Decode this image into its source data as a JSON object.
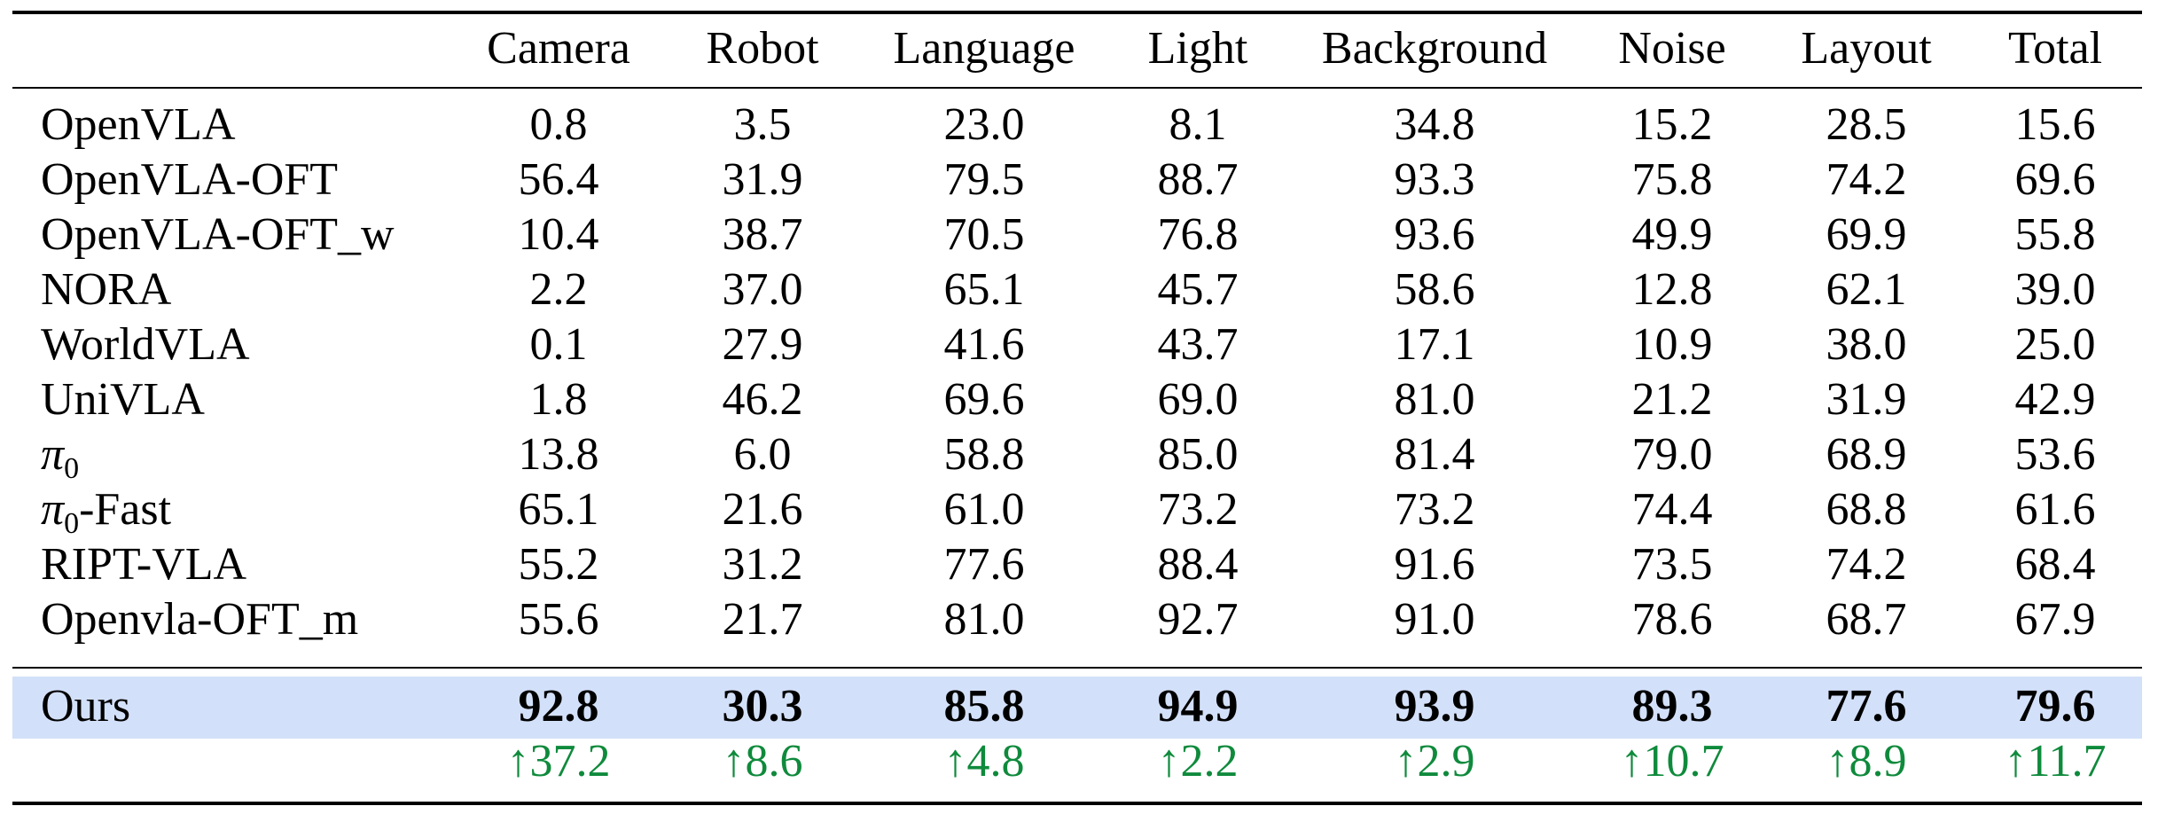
{
  "table": {
    "columns": [
      "Camera",
      "Robot",
      "Language",
      "Light",
      "Background",
      "Noise",
      "Layout",
      "Total"
    ],
    "rows": [
      {
        "method": "OpenVLA",
        "values": [
          "0.8",
          "3.5",
          "23.0",
          "8.1",
          "34.8",
          "15.2",
          "28.5",
          "15.6"
        ]
      },
      {
        "method": "OpenVLA-OFT",
        "values": [
          "56.4",
          "31.9",
          "79.5",
          "88.7",
          "93.3",
          "75.8",
          "74.2",
          "69.6"
        ]
      },
      {
        "method": "OpenVLA-OFT_w",
        "values": [
          "10.4",
          "38.7",
          "70.5",
          "76.8",
          "93.6",
          "49.9",
          "69.9",
          "55.8"
        ]
      },
      {
        "method": "NORA",
        "values": [
          "2.2",
          "37.0",
          "65.1",
          "45.7",
          "58.6",
          "12.8",
          "62.1",
          "39.0"
        ]
      },
      {
        "method": "WorldVLA",
        "values": [
          "0.1",
          "27.9",
          "41.6",
          "43.7",
          "17.1",
          "10.9",
          "38.0",
          "25.0"
        ]
      },
      {
        "method": "UniVLA",
        "values": [
          "1.8",
          "46.2",
          "69.6",
          "69.0",
          "81.0",
          "21.2",
          "31.9",
          "42.9"
        ]
      },
      {
        "method": "π0",
        "values": [
          "13.8",
          "6.0",
          "58.8",
          "85.0",
          "81.4",
          "79.0",
          "68.9",
          "53.6"
        ]
      },
      {
        "method": "π0-Fast",
        "values": [
          "65.1",
          "21.6",
          "61.0",
          "73.2",
          "73.2",
          "74.4",
          "68.8",
          "61.6"
        ]
      },
      {
        "method": "RIPT-VLA",
        "values": [
          "55.2",
          "31.2",
          "77.6",
          "88.4",
          "91.6",
          "73.5",
          "74.2",
          "68.4"
        ]
      },
      {
        "method": "Openvla-OFT_m",
        "values": [
          "55.6",
          "21.7",
          "81.0",
          "92.7",
          "91.0",
          "78.6",
          "68.7",
          "67.9"
        ]
      }
    ],
    "ours": {
      "method": "Ours",
      "values": [
        "92.8",
        "30.3",
        "85.8",
        "94.9",
        "93.9",
        "89.3",
        "77.6",
        "79.6"
      ]
    },
    "deltas": [
      "↑37.2",
      "↑8.6",
      "↑4.8",
      "↑2.2",
      "↑2.9",
      "↑10.7",
      "↑8.9",
      "↑11.7"
    ],
    "colors": {
      "highlight": "#d3e0f9",
      "delta": "#0f8a3c"
    }
  }
}
